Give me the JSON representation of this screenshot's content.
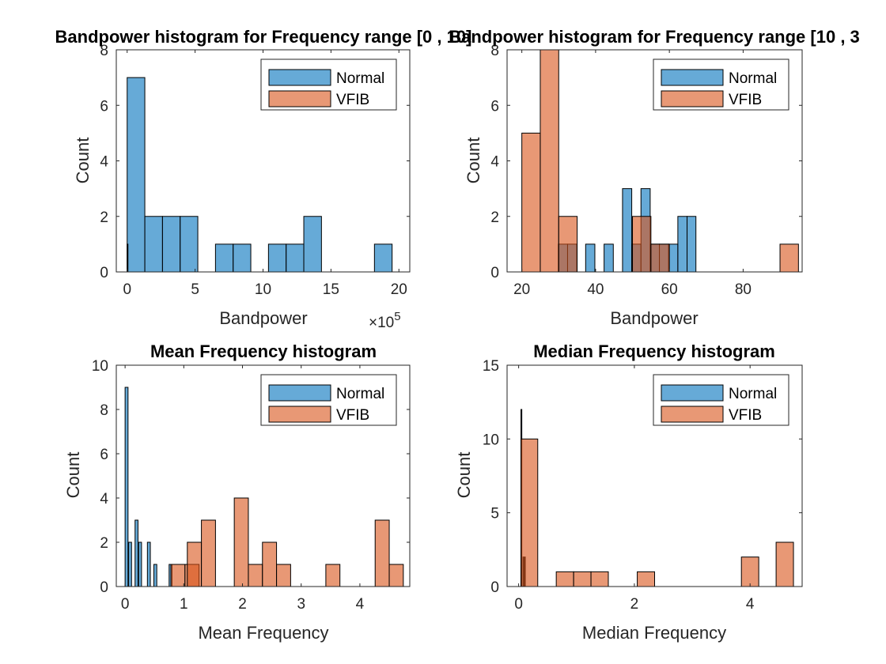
{
  "chart_data": [
    {
      "type": "bar",
      "title": "Bandpower histogram for  Frequency range [0 , 10]",
      "xlabel": "Bandpower",
      "ylabel": "Count",
      "x_exponent": "×10^5",
      "xlim": [
        -0.8,
        20.8
      ],
      "ylim": [
        0,
        8
      ],
      "xticks": [
        0,
        5,
        10,
        15,
        20
      ],
      "xtick_labels": [
        "0",
        "5",
        "10",
        "15",
        "20"
      ],
      "yticks": [
        0,
        2,
        4,
        6,
        8
      ],
      "ytick_labels": [
        "0",
        "2",
        "4",
        "6",
        "8"
      ],
      "legend_position": "top-right",
      "series": [
        {
          "name": "Normal",
          "color": "#0072BD",
          "bins": [
            [
              0,
              1.3,
              7
            ],
            [
              1.3,
              2.6,
              2
            ],
            [
              2.6,
              3.9,
              2
            ],
            [
              3.9,
              5.2,
              2
            ],
            [
              6.5,
              7.8,
              1
            ],
            [
              7.8,
              9.1,
              1
            ],
            [
              10.4,
              11.7,
              1
            ],
            [
              11.7,
              13.0,
              1
            ],
            [
              13.0,
              14.3,
              2
            ],
            [
              18.2,
              19.5,
              1
            ]
          ]
        },
        {
          "name": "VFIB",
          "color": "#D95319",
          "bins": [
            [
              0,
              0.04,
              1
            ]
          ]
        }
      ]
    },
    {
      "type": "bar",
      "title": "Bandpower histogram for  Frequency range [10 , 3",
      "xlabel": "Bandpower",
      "ylabel": "Count",
      "xlim": [
        16,
        96
      ],
      "ylim": [
        0,
        8
      ],
      "xticks": [
        20,
        40,
        60,
        80
      ],
      "xtick_labels": [
        "20",
        "40",
        "60",
        "80"
      ],
      "yticks": [
        0,
        2,
        4,
        6,
        8
      ],
      "ytick_labels": [
        "0",
        "2",
        "4",
        "6",
        "8"
      ],
      "legend_position": "top-right",
      "series": [
        {
          "name": "Normal",
          "color": "#0072BD",
          "bins": [
            [
              29.9,
              32.4,
              1
            ],
            [
              32.4,
              34.9,
              1
            ],
            [
              37.3,
              39.8,
              1
            ],
            [
              42.3,
              44.8,
              1
            ],
            [
              47.3,
              49.8,
              3
            ],
            [
              49.8,
              52.3,
              1
            ],
            [
              52.3,
              54.8,
              3
            ],
            [
              54.8,
              57.3,
              1
            ],
            [
              57.3,
              59.8,
              1
            ],
            [
              59.8,
              62.3,
              1
            ],
            [
              62.3,
              64.8,
              2
            ],
            [
              64.8,
              67.2,
              2
            ]
          ]
        },
        {
          "name": "VFIB",
          "color": "#D95319",
          "bins": [
            [
              20,
              25,
              5
            ],
            [
              25,
              30,
              8
            ],
            [
              30,
              35,
              2
            ],
            [
              50,
              55,
              2
            ],
            [
              55,
              60,
              1
            ],
            [
              90,
              95,
              1
            ]
          ]
        }
      ]
    },
    {
      "type": "bar",
      "title": "Mean Frequency histogram",
      "xlabel": "Mean Frequency",
      "ylabel": "Count",
      "xlim": [
        -0.15,
        4.85
      ],
      "ylim": [
        0,
        10
      ],
      "xticks": [
        0,
        1,
        2,
        3,
        4
      ],
      "xtick_labels": [
        "0",
        "1",
        "2",
        "3",
        "4"
      ],
      "yticks": [
        0,
        2,
        4,
        6,
        8,
        10
      ],
      "ytick_labels": [
        "0",
        "2",
        "4",
        "6",
        "8",
        "10"
      ],
      "legend_position": "top-right",
      "series": [
        {
          "name": "Normal",
          "color": "#0072BD",
          "bins": [
            [
              0,
              0.05,
              9
            ],
            [
              0.06,
              0.11,
              2
            ],
            [
              0.17,
              0.22,
              3
            ],
            [
              0.23,
              0.28,
              2
            ],
            [
              0.38,
              0.43,
              2
            ],
            [
              0.49,
              0.54,
              1
            ],
            [
              0.75,
              0.8,
              1
            ]
          ]
        },
        {
          "name": "VFIB",
          "color": "#D95319",
          "bins": [
            [
              0.78,
              1.02,
              1
            ],
            [
              1.02,
              1.26,
              1
            ],
            [
              1.06,
              1.3,
              2
            ],
            [
              1.3,
              1.54,
              3
            ],
            [
              1.86,
              2.1,
              4
            ],
            [
              2.1,
              2.34,
              1
            ],
            [
              2.34,
              2.58,
              2
            ],
            [
              2.58,
              2.82,
              1
            ],
            [
              3.42,
              3.66,
              1
            ],
            [
              4.26,
              4.5,
              3
            ],
            [
              4.5,
              4.74,
              1
            ]
          ]
        }
      ]
    },
    {
      "type": "bar",
      "title": "Median Frequency histogram",
      "xlabel": "Median Frequency",
      "ylabel": "Count",
      "xlim": [
        -0.2,
        4.9
      ],
      "ylim": [
        0,
        15
      ],
      "xticks": [
        0,
        2,
        4
      ],
      "xtick_labels": [
        "0",
        "2",
        "4"
      ],
      "yticks": [
        0,
        5,
        10,
        15
      ],
      "ytick_labels": [
        "0",
        "5",
        "10",
        "15"
      ],
      "legend_position": "top-right",
      "series": [
        {
          "name": "Normal",
          "color": "#0072BD",
          "bins": [
            [
              0.04,
              0.055,
              12
            ],
            [
              0.075,
              0.09,
              2
            ],
            [
              0.1,
              0.115,
              2
            ]
          ]
        },
        {
          "name": "VFIB",
          "color": "#D95319",
          "bins": [
            [
              0.04,
              0.33,
              10
            ],
            [
              0.65,
              0.95,
              1
            ],
            [
              0.95,
              1.25,
              1
            ],
            [
              1.25,
              1.55,
              1
            ],
            [
              2.05,
              2.35,
              1
            ],
            [
              3.85,
              4.15,
              2
            ],
            [
              4.45,
              4.75,
              3
            ]
          ]
        }
      ]
    }
  ]
}
